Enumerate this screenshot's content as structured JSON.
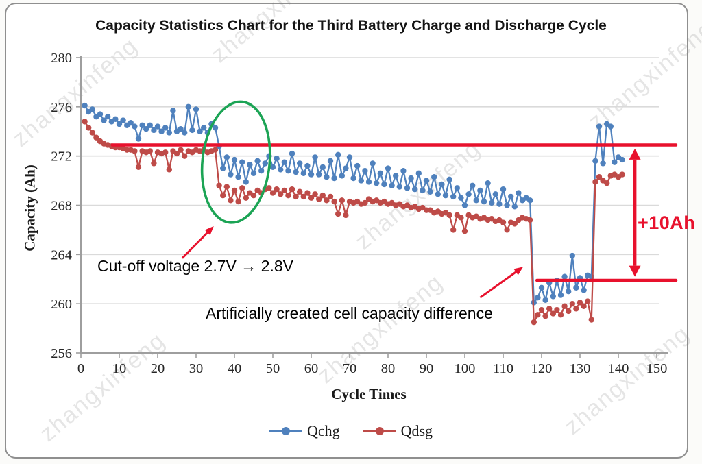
{
  "title": "Capacity Statistics Chart for the Third Battery Charge and Discharge Cycle",
  "watermark": {
    "text": "zhangxinfeng"
  },
  "legend": {
    "items": [
      {
        "label": "Qchg",
        "color": "#4F81BD"
      },
      {
        "label": "Qdsg",
        "color": "#BE4B48"
      }
    ]
  },
  "chart_data": {
    "type": "line",
    "title": "Capacity Statistics Chart for the Third Battery Charge and Discharge Cycle",
    "xlabel": "Cycle Times",
    "ylabel": "Capacity (Ah)",
    "xlim": [
      0,
      150
    ],
    "ylim": [
      256,
      280
    ],
    "xticks": [
      0,
      10,
      20,
      30,
      40,
      50,
      60,
      70,
      80,
      90,
      100,
      110,
      120,
      130,
      140,
      150
    ],
    "yticks": [
      256,
      260,
      264,
      268,
      272,
      276,
      280
    ],
    "grid": "horizontal",
    "legend_position": "bottom",
    "series": [
      {
        "name": "Qchg",
        "color": "#4F81BD",
        "marker": "circle",
        "x_start": 1,
        "x_step": 1,
        "values": [
          276.1,
          275.6,
          275.8,
          275.2,
          275.4,
          274.9,
          275.2,
          274.8,
          275.0,
          274.6,
          274.9,
          274.5,
          274.7,
          274.4,
          273.4,
          274.5,
          274.2,
          274.5,
          274.1,
          274.4,
          274.0,
          274.3,
          273.9,
          275.7,
          274.0,
          274.2,
          273.9,
          276.0,
          274.1,
          275.8,
          274.0,
          274.3,
          273.9,
          274.6,
          274.3,
          272.8,
          271.0,
          271.9,
          270.5,
          271.7,
          270.3,
          271.5,
          269.9,
          271.3,
          270.6,
          271.6,
          270.8,
          271.4,
          272.0,
          271.1,
          271.8,
          270.9,
          271.5,
          270.8,
          272.2,
          270.7,
          271.4,
          270.6,
          271.2,
          270.5,
          271.9,
          270.5,
          271.1,
          270.3,
          271.6,
          270.2,
          272.1,
          270.4,
          271.0,
          271.9,
          270.2,
          271.2,
          270.0,
          270.8,
          269.9,
          271.4,
          269.8,
          270.6,
          269.7,
          271.0,
          269.6,
          270.4,
          269.5,
          270.8,
          269.4,
          270.2,
          269.3,
          270.6,
          269.2,
          270.0,
          269.1,
          270.3,
          268.9,
          269.7,
          268.8,
          270.1,
          268.7,
          269.4,
          268.6,
          268.0,
          268.9,
          269.6,
          268.4,
          269.2,
          268.3,
          269.8,
          268.2,
          268.9,
          268.1,
          269.3,
          268.0,
          268.7,
          267.9,
          269.0,
          268.4,
          268.6,
          268.4,
          260.1,
          260.5,
          261.3,
          260.3,
          261.7,
          260.6,
          261.9,
          260.7,
          262.2,
          261.0,
          263.9,
          261.3,
          262.1,
          261.1,
          262.3,
          262.2,
          271.6,
          274.4,
          271.4,
          274.6,
          274.4,
          271.5,
          271.9,
          271.7
        ]
      },
      {
        "name": "Qdsg",
        "color": "#BE4B48",
        "marker": "circle",
        "x_start": 1,
        "x_step": 1,
        "values": [
          274.8,
          274.3,
          273.9,
          273.5,
          273.2,
          273.0,
          272.9,
          272.8,
          272.7,
          272.7,
          272.6,
          272.5,
          272.5,
          272.4,
          271.1,
          272.4,
          272.3,
          272.4,
          271.4,
          272.3,
          272.2,
          272.3,
          270.9,
          272.4,
          272.2,
          272.5,
          272.0,
          272.4,
          272.3,
          272.5,
          272.4,
          272.5,
          272.3,
          272.4,
          272.5,
          269.6,
          268.8,
          269.5,
          268.4,
          269.2,
          268.3,
          269.4,
          268.6,
          269.0,
          268.8,
          269.2,
          269.0,
          269.3,
          269.4,
          269.0,
          269.3,
          268.9,
          269.2,
          268.8,
          269.3,
          268.7,
          269.1,
          268.7,
          269.0,
          268.6,
          268.9,
          268.5,
          268.8,
          268.4,
          268.7,
          268.3,
          267.3,
          268.4,
          267.2,
          268.3,
          268.2,
          268.3,
          268.1,
          268.2,
          268.5,
          268.3,
          268.4,
          268.2,
          268.3,
          268.1,
          268.2,
          268.0,
          268.1,
          267.9,
          268.0,
          267.8,
          267.9,
          267.7,
          267.8,
          267.6,
          267.6,
          267.4,
          267.5,
          267.3,
          267.4,
          267.2,
          266.0,
          267.2,
          267.0,
          265.9,
          267.2,
          267.0,
          267.1,
          266.9,
          267.0,
          266.8,
          266.9,
          266.7,
          266.8,
          266.6,
          266.0,
          266.6,
          266.5,
          266.8,
          267.0,
          266.9,
          266.8,
          258.5,
          259.1,
          259.5,
          259.0,
          259.6,
          259.2,
          259.5,
          259.1,
          259.8,
          259.4,
          260.0,
          259.6,
          260.1,
          259.8,
          260.2,
          258.7,
          269.9,
          270.3,
          270.0,
          269.8,
          270.4,
          270.5,
          270.3,
          270.5
        ]
      }
    ],
    "annotations": {
      "ref_line_top": {
        "value": 272.9,
        "x_start": 8.2,
        "x_end": 155,
        "color": "#E8112D"
      },
      "ref_line_bottom": {
        "value": 261.9,
        "x_start": 118.8,
        "x_end": 155,
        "color": "#E8112D"
      },
      "double_arrow": {
        "x": 144.3,
        "value_start": 272.6,
        "value_end": 262.2,
        "label": "+10Ah",
        "color": "#E8112D"
      },
      "ellipse": {
        "center_x": 40.4,
        "center_value": 271.5,
        "rx_cycles": 8.75,
        "ry_ah": 4.93,
        "rotation_deg": 6,
        "color": "#1CA455"
      },
      "cutoff_text": {
        "text": "Cut-off voltage 2.7V → 2.8V",
        "arrow_from": [
          26.4,
          263.7
        ],
        "arrow_to": [
          34.6,
          266.3
        ],
        "color": "#E8112D"
      },
      "capacity_diff_text": {
        "text": "Artificially created cell capacity difference",
        "arrow_from": [
          104.0,
          260.5
        ],
        "arrow_to": [
          115.2,
          263.0
        ],
        "color": "#E8112D"
      }
    }
  }
}
